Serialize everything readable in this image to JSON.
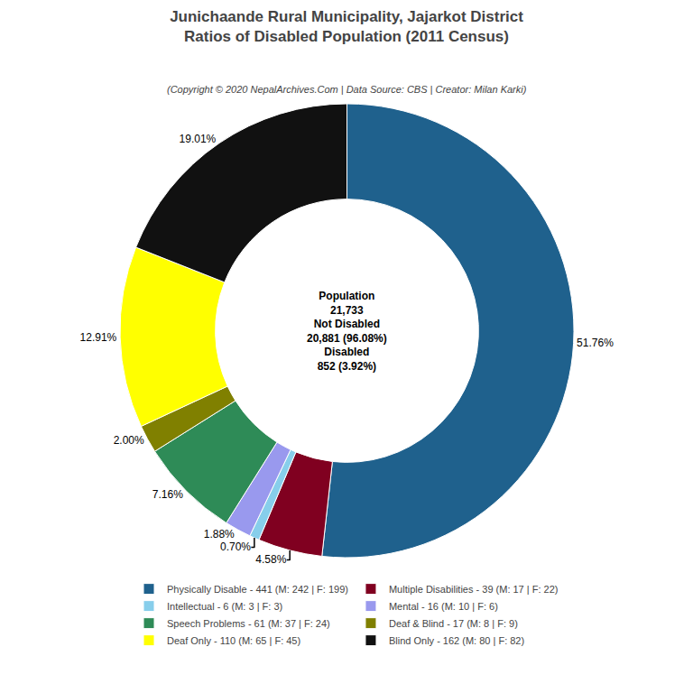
{
  "chart_data": {
    "type": "pie",
    "title": "Junichaande Rural Municipality, Jajarkot District\nRatios of Disabled Population (2011 Census)",
    "subtitle": "(Copyright © 2020 NepalArchives.Com | Data Source: CBS | Creator: Milan Karki)",
    "categories": [
      "Physically Disable - 441 (M: 242 | F: 199)",
      "Multiple Disabilities - 39 (M: 17 | F: 22)",
      "Intellectual - 6 (M: 3 | F: 3)",
      "Mental - 16 (M: 10 | F: 6)",
      "Speech Problems - 61 (M: 37 | F: 24)",
      "Deaf & Blind - 17 (M: 8 | F: 9)",
      "Deaf Only - 110 (M: 65 | F: 45)",
      "Blind Only - 162 (M: 80 | F: 82)"
    ],
    "values": [
      51.76,
      4.58,
      0.7,
      1.88,
      7.16,
      2,
      12.91,
      19.01
    ],
    "value_labels": [
      "51.76%",
      "4.58%",
      "0.70%",
      "1.88%",
      "7.16%",
      "2.00%",
      "12.91%",
      "19.01%"
    ],
    "colors": [
      "#1F618D",
      "#800020",
      "#87CEEB",
      "#9999EE",
      "#2E8B57",
      "#808000",
      "#FFFF00",
      "#111111"
    ],
    "data_labels": true,
    "legend": "bottom",
    "annotations": [
      "Population",
      "21,733",
      "Not Disabled",
      "20,881 (96.08%)",
      "Disabled",
      "852 (3.92%)"
    ]
  }
}
